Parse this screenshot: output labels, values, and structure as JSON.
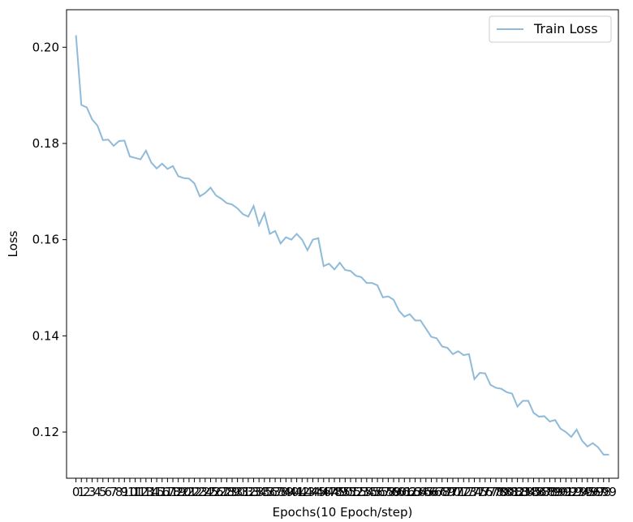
{
  "chart_data": {
    "type": "line",
    "title": "",
    "xlabel": "Epochs(10 Epoch/step)",
    "ylabel": "Loss",
    "ylim": [
      0.1104,
      0.2078
    ],
    "xlim": [
      -1.75,
      100.75
    ],
    "yticks": [
      0.12,
      0.14,
      0.16,
      0.18,
      0.2
    ],
    "ytick_labels": [
      "0.12",
      "0.14",
      "0.16",
      "0.18",
      "0.20"
    ],
    "grid": false,
    "legend_position": "top-right",
    "colors": {
      "line": "#1f77b4",
      "axes": "#000000",
      "legend_border": "#cccccc"
    },
    "line_alpha": 0.5,
    "x": [
      0,
      1,
      2,
      3,
      4,
      5,
      6,
      7,
      8,
      9,
      10,
      11,
      12,
      13,
      14,
      15,
      16,
      17,
      18,
      19,
      20,
      21,
      22,
      23,
      24,
      25,
      26,
      27,
      28,
      29,
      30,
      31,
      32,
      33,
      34,
      35,
      36,
      37,
      38,
      39,
      40,
      41,
      42,
      43,
      44,
      45,
      46,
      47,
      48,
      49,
      50,
      51,
      52,
      53,
      54,
      55,
      56,
      57,
      58,
      59,
      60,
      61,
      62,
      63,
      64,
      65,
      66,
      67,
      68,
      69,
      70,
      71,
      72,
      73,
      74,
      75,
      76,
      77,
      78,
      79,
      80,
      81,
      82,
      83,
      84,
      85,
      86,
      87,
      88,
      89,
      90,
      91,
      92,
      93,
      94,
      95,
      96,
      97,
      98,
      99
    ],
    "series": [
      {
        "name": "Train Loss",
        "values": [
          0.2025,
          0.188,
          0.1875,
          0.185,
          0.1837,
          0.1807,
          0.1808,
          0.1795,
          0.1805,
          0.1806,
          0.1773,
          0.177,
          0.1767,
          0.1785,
          0.176,
          0.1748,
          0.1758,
          0.1747,
          0.1753,
          0.1732,
          0.1728,
          0.1727,
          0.1717,
          0.169,
          0.1697,
          0.1708,
          0.1692,
          0.1685,
          0.1676,
          0.1673,
          0.1665,
          0.1653,
          0.1648,
          0.167,
          0.163,
          0.1655,
          0.1612,
          0.1618,
          0.1592,
          0.1605,
          0.16,
          0.1612,
          0.16,
          0.1578,
          0.16,
          0.1603,
          0.1545,
          0.155,
          0.1538,
          0.1552,
          0.1537,
          0.1535,
          0.1525,
          0.1522,
          0.151,
          0.151,
          0.1505,
          0.148,
          0.1482,
          0.1475,
          0.1452,
          0.144,
          0.1445,
          0.1432,
          0.1432,
          0.1415,
          0.1398,
          0.1395,
          0.1378,
          0.1375,
          0.1362,
          0.1368,
          0.136,
          0.1362,
          0.131,
          0.1323,
          0.1322,
          0.1298,
          0.1292,
          0.129,
          0.1283,
          0.128,
          0.1253,
          0.1265,
          0.1265,
          0.124,
          0.1232,
          0.1233,
          0.1222,
          0.1225,
          0.1207,
          0.12,
          0.119,
          0.1205,
          0.1182,
          0.117,
          0.1177,
          0.1168,
          0.1153,
          0.1153
        ]
      }
    ]
  }
}
